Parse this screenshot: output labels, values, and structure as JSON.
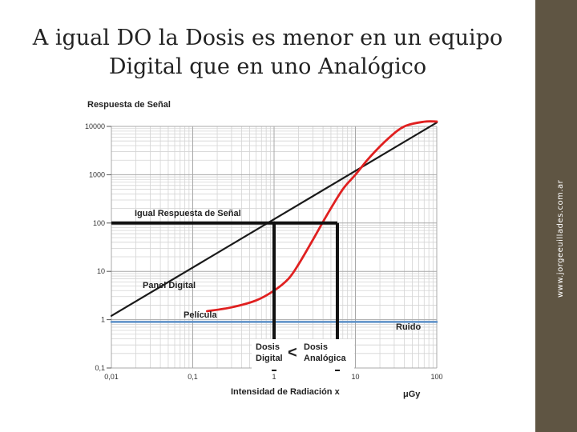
{
  "slide": {
    "title_line1": "A igual DO la Dosis es menor en un equipo",
    "title_line2": "Digital que en uno Analógico",
    "watermark": "www.jorgeeuillades.com.ar"
  },
  "chart_data": {
    "type": "line",
    "ylabel": "Respuesta de Señal",
    "xlabel": "Intensidad de Radiación x",
    "xunit": "μGy",
    "x_scale": "log",
    "y_scale": "log",
    "xlim": [
      0.01,
      100
    ],
    "ylim": [
      0.1,
      10000
    ],
    "x_ticks": [
      {
        "v": 0.01,
        "label": "0,01"
      },
      {
        "v": 0.1,
        "label": "0,1"
      },
      {
        "v": 1,
        "label": "1"
      },
      {
        "v": 10,
        "label": "10"
      },
      {
        "v": 100,
        "label": "100"
      }
    ],
    "y_ticks": [
      {
        "v": 0.1,
        "label": "0,1"
      },
      {
        "v": 1,
        "label": "1"
      },
      {
        "v": 10,
        "label": "10"
      },
      {
        "v": 100,
        "label": "100"
      },
      {
        "v": 1000,
        "label": "1000"
      },
      {
        "v": 10000,
        "label": "10000"
      }
    ],
    "grid": true,
    "series": [
      {
        "name": "Panel Digital",
        "color": "#1a1a1a",
        "x": [
          0.01,
          100
        ],
        "y": [
          1.2,
          12000
        ]
      },
      {
        "name": "Película",
        "color": "#e02020",
        "x": [
          0.15,
          0.3,
          0.6,
          1,
          1.5,
          2,
          3,
          4.5,
          7,
          10,
          15,
          25,
          40,
          70,
          100
        ],
        "y": [
          1.5,
          1.8,
          2.5,
          4,
          7,
          14,
          45,
          150,
          500,
          1000,
          2300,
          5500,
          10000,
          12500,
          12600
        ]
      },
      {
        "name": "Ruido",
        "color": "#5b8fc7",
        "x": [
          0.01,
          100
        ],
        "y": [
          0.9,
          0.9
        ]
      }
    ],
    "annotations": {
      "equal_response": "Igual Respuesta de Señal",
      "equal_response_y": 100,
      "dose_digital_x": 1,
      "dose_analog_x": 6,
      "dose_digital_label_1": "Dosis",
      "dose_digital_label_2": "Digital",
      "dose_analog_label_1": "Dosis",
      "dose_analog_label_2": "Analógica",
      "comparison": "<"
    }
  }
}
